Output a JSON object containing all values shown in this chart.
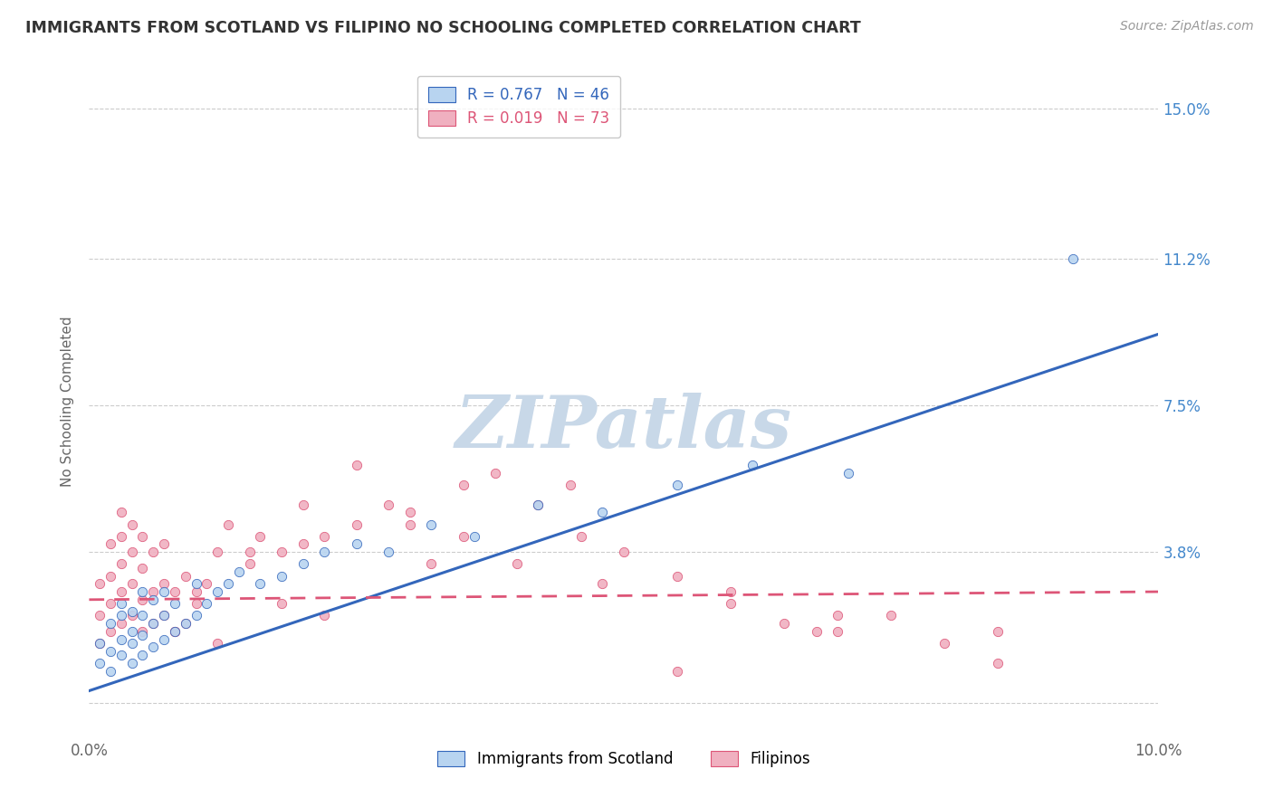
{
  "title": "IMMIGRANTS FROM SCOTLAND VS FILIPINO NO SCHOOLING COMPLETED CORRELATION CHART",
  "source": "Source: ZipAtlas.com",
  "ylabel": "No Schooling Completed",
  "xlim": [
    0.0,
    0.1
  ],
  "ylim": [
    -0.008,
    0.16
  ],
  "yticks": [
    0.0,
    0.038,
    0.075,
    0.112,
    0.15
  ],
  "ytick_labels": [
    "",
    "3.8%",
    "7.5%",
    "11.2%",
    "15.0%"
  ],
  "xticks": [
    0.0,
    0.02,
    0.04,
    0.06,
    0.08,
    0.1
  ],
  "xtick_labels": [
    "0.0%",
    "",
    "",
    "",
    "",
    "10.0%"
  ],
  "legend_series_labels": [
    "R = 0.767   N = 46",
    "R = 0.019   N = 73"
  ],
  "legend_bottom_labels": [
    "Immigrants from Scotland",
    "Filipinos"
  ],
  "scotland_color": "#b8d4f0",
  "filipino_color": "#f0b0c0",
  "scotland_line_color": "#3366bb",
  "filipino_line_color": "#dd5577",
  "watermark": "ZIPatlas",
  "watermark_color_zip": "#c8d8e8",
  "watermark_color_atlas": "#c0ccd8",
  "background_color": "#ffffff",
  "title_color": "#333333",
  "grid_color": "#cccccc",
  "scotland_trend": [
    0.003,
    0.093
  ],
  "filipino_trend": [
    0.026,
    0.028
  ],
  "scotland_x": [
    0.001,
    0.001,
    0.002,
    0.002,
    0.002,
    0.003,
    0.003,
    0.003,
    0.003,
    0.004,
    0.004,
    0.004,
    0.004,
    0.005,
    0.005,
    0.005,
    0.005,
    0.006,
    0.006,
    0.006,
    0.007,
    0.007,
    0.007,
    0.008,
    0.008,
    0.009,
    0.01,
    0.01,
    0.011,
    0.012,
    0.013,
    0.014,
    0.016,
    0.018,
    0.02,
    0.022,
    0.025,
    0.028,
    0.032,
    0.036,
    0.042,
    0.048,
    0.055,
    0.062,
    0.071,
    0.092
  ],
  "scotland_y": [
    0.01,
    0.015,
    0.008,
    0.013,
    0.02,
    0.012,
    0.016,
    0.022,
    0.025,
    0.01,
    0.015,
    0.018,
    0.023,
    0.012,
    0.017,
    0.022,
    0.028,
    0.014,
    0.02,
    0.026,
    0.016,
    0.022,
    0.028,
    0.018,
    0.025,
    0.02,
    0.022,
    0.03,
    0.025,
    0.028,
    0.03,
    0.033,
    0.03,
    0.032,
    0.035,
    0.038,
    0.04,
    0.038,
    0.045,
    0.042,
    0.05,
    0.048,
    0.055,
    0.06,
    0.058,
    0.112
  ],
  "filipino_x": [
    0.001,
    0.001,
    0.001,
    0.002,
    0.002,
    0.002,
    0.002,
    0.003,
    0.003,
    0.003,
    0.003,
    0.003,
    0.004,
    0.004,
    0.004,
    0.004,
    0.005,
    0.005,
    0.005,
    0.005,
    0.006,
    0.006,
    0.006,
    0.007,
    0.007,
    0.007,
    0.008,
    0.008,
    0.009,
    0.009,
    0.01,
    0.011,
    0.012,
    0.013,
    0.015,
    0.016,
    0.018,
    0.02,
    0.022,
    0.025,
    0.028,
    0.03,
    0.035,
    0.038,
    0.042,
    0.046,
    0.05,
    0.055,
    0.06,
    0.065,
    0.07,
    0.075,
    0.08,
    0.085,
    0.06,
    0.04,
    0.03,
    0.02,
    0.015,
    0.01,
    0.008,
    0.025,
    0.045,
    0.035,
    0.018,
    0.012,
    0.022,
    0.032,
    0.048,
    0.068,
    0.055,
    0.07,
    0.085
  ],
  "filipino_y": [
    0.015,
    0.022,
    0.03,
    0.018,
    0.025,
    0.032,
    0.04,
    0.02,
    0.028,
    0.035,
    0.042,
    0.048,
    0.022,
    0.03,
    0.038,
    0.045,
    0.018,
    0.026,
    0.034,
    0.042,
    0.02,
    0.028,
    0.038,
    0.022,
    0.03,
    0.04,
    0.018,
    0.028,
    0.02,
    0.032,
    0.025,
    0.03,
    0.038,
    0.045,
    0.035,
    0.042,
    0.038,
    0.04,
    0.042,
    0.045,
    0.05,
    0.048,
    0.055,
    0.058,
    0.05,
    0.042,
    0.038,
    0.032,
    0.025,
    0.02,
    0.018,
    0.022,
    0.015,
    0.01,
    0.028,
    0.035,
    0.045,
    0.05,
    0.038,
    0.028,
    0.018,
    0.06,
    0.055,
    0.042,
    0.025,
    0.015,
    0.022,
    0.035,
    0.03,
    0.018,
    0.008,
    0.022,
    0.018
  ]
}
